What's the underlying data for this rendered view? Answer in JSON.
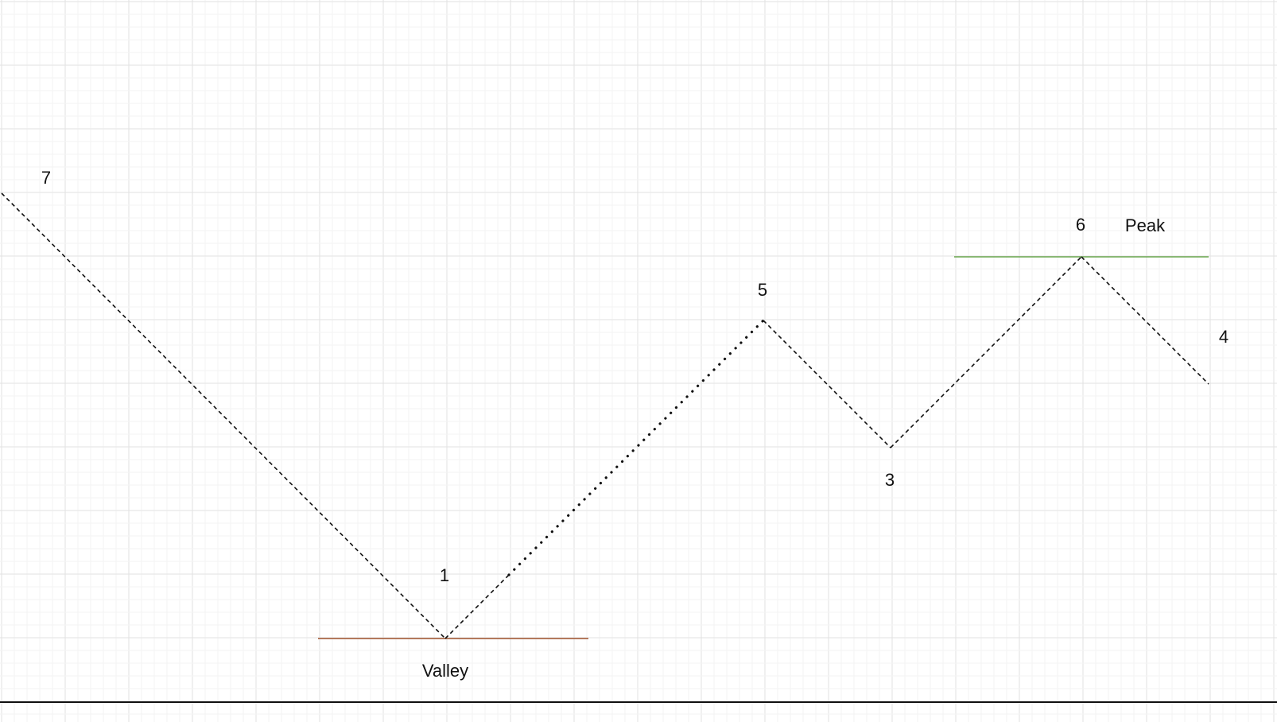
{
  "canvas": {
    "background": "#ffffff",
    "grid_minor_color": "#f3f3f3",
    "grid_major_color": "#e2e2e2",
    "baseline_color": "#111111"
  },
  "points": [
    {
      "id": "p7",
      "label": "7"
    },
    {
      "id": "p1",
      "label": "1"
    },
    {
      "id": "p5",
      "label": "5"
    },
    {
      "id": "p3",
      "label": "3"
    },
    {
      "id": "p6",
      "label": "6"
    },
    {
      "id": "p4",
      "label": "4"
    }
  ],
  "segments": [
    {
      "from": "p7",
      "to": "p1",
      "style": "dashed"
    },
    {
      "from": "p1",
      "to": "p1b",
      "style": "dashed"
    },
    {
      "from": "p1b",
      "to": "p5",
      "style": "dotted"
    },
    {
      "from": "p5",
      "to": "p3",
      "style": "dashed"
    },
    {
      "from": "p3",
      "to": "p6",
      "style": "dashed"
    },
    {
      "from": "p6",
      "to": "p4",
      "style": "dashed"
    }
  ],
  "annotations": {
    "valley": {
      "label": "Valley",
      "color": "#a0522d"
    },
    "peak": {
      "label": "Peak",
      "color": "#6aa84f"
    }
  }
}
